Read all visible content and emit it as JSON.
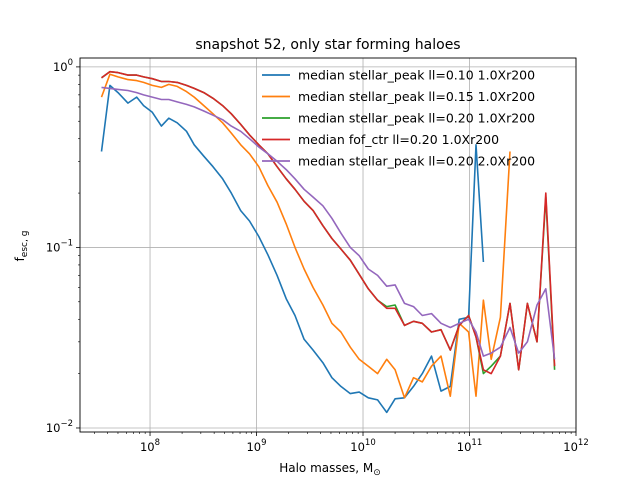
{
  "chart_data": {
    "type": "line",
    "title": "snapshot 52, only star forming haloes",
    "xlabel": "Halo masses, M",
    "xlabel_sub": "⊙",
    "ylabel": "f",
    "ylabel_sub": "esc, g",
    "xscale": "log",
    "yscale": "log",
    "xlim": [
      22000000.0,
      1000000000000.0
    ],
    "ylim": [
      0.0095,
      1.12
    ],
    "grid": true,
    "legend_position": "top-right",
    "x_ticks": [
      {
        "value": 100000000.0,
        "label": "10",
        "exp": "8"
      },
      {
        "value": 1000000000.0,
        "label": "10",
        "exp": "9"
      },
      {
        "value": 10000000000.0,
        "label": "10",
        "exp": "10"
      },
      {
        "value": 100000000000.0,
        "label": "10",
        "exp": "11"
      },
      {
        "value": 1000000000000.0,
        "label": "10",
        "exp": "12"
      }
    ],
    "y_ticks": [
      {
        "value": 0.01,
        "label": "10",
        "exp": "−2"
      },
      {
        "value": 0.1,
        "label": "10",
        "exp": "−1"
      },
      {
        "value": 1,
        "label": "10",
        "exp": "0"
      }
    ],
    "series": [
      {
        "name": "median stellar_peak ll=0.10 1.0Xr200",
        "color": "#1f77b4",
        "points": [
          [
            35000000.0,
            0.34
          ],
          [
            42000000.0,
            0.79
          ],
          [
            50000000.0,
            0.72
          ],
          [
            62000000.0,
            0.63
          ],
          [
            75000000.0,
            0.68
          ],
          [
            87000000.0,
            0.61
          ],
          [
            105000000.0,
            0.56
          ],
          [
            128000000.0,
            0.47
          ],
          [
            150000000.0,
            0.52
          ],
          [
            180000000.0,
            0.49
          ],
          [
            220000000.0,
            0.44
          ],
          [
            260000000.0,
            0.37
          ],
          [
            320000000.0,
            0.32
          ],
          [
            390000000.0,
            0.28
          ],
          [
            480000000.0,
            0.24
          ],
          [
            580000000.0,
            0.2
          ],
          [
            710000000.0,
            0.16
          ],
          [
            860000000.0,
            0.14
          ],
          [
            1050000000.0,
            0.115
          ],
          [
            1280000000.0,
            0.091
          ],
          [
            1560000000.0,
            0.07
          ],
          [
            1900000000.0,
            0.052
          ],
          [
            2300000000.0,
            0.042
          ],
          [
            2800000000.0,
            0.031
          ],
          [
            3400000000.0,
            0.027
          ],
          [
            4200000000.0,
            0.023
          ],
          [
            5100000000.0,
            0.019
          ],
          [
            6200000000.0,
            0.017
          ],
          [
            7600000000.0,
            0.0155
          ],
          [
            9200000000.0,
            0.0158
          ],
          [
            11200000000.0,
            0.0147
          ],
          [
            13700000000.0,
            0.0143
          ],
          [
            16700000000.0,
            0.0122
          ],
          [
            20000000000.0,
            0.0145
          ],
          [
            24500000000.0,
            0.0147
          ],
          [
            29800000000.0,
            0.017
          ],
          [
            36000000000.0,
            0.02
          ],
          [
            44000000000.0,
            0.025
          ],
          [
            54000000000.0,
            0.016
          ],
          [
            66000000000.0,
            0.017
          ],
          [
            80000000000.0,
            0.04
          ],
          [
            98000000000.0,
            0.041
          ],
          [
            115000000000.0,
            0.37
          ],
          [
            135000000000.0,
            0.083
          ]
        ]
      },
      {
        "name": "median stellar_peak ll=0.15 1.0Xr200",
        "color": "#ff7f0e",
        "points": [
          [
            35000000.0,
            0.68
          ],
          [
            42000000.0,
            0.91
          ],
          [
            50000000.0,
            0.88
          ],
          [
            62000000.0,
            0.85
          ],
          [
            75000000.0,
            0.84
          ],
          [
            87000000.0,
            0.82
          ],
          [
            105000000.0,
            0.79
          ],
          [
            128000000.0,
            0.77
          ],
          [
            150000000.0,
            0.8
          ],
          [
            180000000.0,
            0.78
          ],
          [
            220000000.0,
            0.73
          ],
          [
            260000000.0,
            0.68
          ],
          [
            320000000.0,
            0.61
          ],
          [
            390000000.0,
            0.55
          ],
          [
            480000000.0,
            0.49
          ],
          [
            580000000.0,
            0.43
          ],
          [
            710000000.0,
            0.37
          ],
          [
            860000000.0,
            0.33
          ],
          [
            1050000000.0,
            0.28
          ],
          [
            1280000000.0,
            0.22
          ],
          [
            1560000000.0,
            0.178
          ],
          [
            1900000000.0,
            0.135
          ],
          [
            2300000000.0,
            0.1
          ],
          [
            2800000000.0,
            0.076
          ],
          [
            3400000000.0,
            0.06
          ],
          [
            4200000000.0,
            0.048
          ],
          [
            5100000000.0,
            0.038
          ],
          [
            6200000000.0,
            0.034
          ],
          [
            7600000000.0,
            0.028
          ],
          [
            9200000000.0,
            0.024
          ],
          [
            11200000000.0,
            0.022
          ],
          [
            13700000000.0,
            0.02
          ],
          [
            16700000000.0,
            0.024
          ],
          [
            20000000000.0,
            0.021
          ],
          [
            24500000000.0,
            0.0147
          ],
          [
            29800000000.0,
            0.019
          ],
          [
            36000000000.0,
            0.018
          ],
          [
            44000000000.0,
            0.022
          ],
          [
            54000000000.0,
            0.025
          ],
          [
            66000000000.0,
            0.015
          ],
          [
            80000000000.0,
            0.038
          ],
          [
            98000000000.0,
            0.034
          ],
          [
            115000000000.0,
            0.015
          ],
          [
            135000000000.0,
            0.051
          ],
          [
            160000000000.0,
            0.024
          ],
          [
            195000000000.0,
            0.041
          ],
          [
            240000000000.0,
            0.34
          ]
        ]
      },
      {
        "name": "median stellar_peak ll=0.20 1.0Xr200",
        "color": "#2ca02c",
        "points": [
          [
            35000000.0,
            0.87
          ],
          [
            42000000.0,
            0.94
          ],
          [
            50000000.0,
            0.93
          ],
          [
            62000000.0,
            0.9
          ],
          [
            75000000.0,
            0.9
          ],
          [
            87000000.0,
            0.88
          ],
          [
            105000000.0,
            0.86
          ],
          [
            128000000.0,
            0.83
          ],
          [
            150000000.0,
            0.83
          ],
          [
            180000000.0,
            0.82
          ],
          [
            220000000.0,
            0.79
          ],
          [
            260000000.0,
            0.76
          ],
          [
            320000000.0,
            0.72
          ],
          [
            390000000.0,
            0.67
          ],
          [
            480000000.0,
            0.61
          ],
          [
            580000000.0,
            0.55
          ],
          [
            710000000.0,
            0.48
          ],
          [
            860000000.0,
            0.42
          ],
          [
            1050000000.0,
            0.37
          ],
          [
            1280000000.0,
            0.33
          ],
          [
            1560000000.0,
            0.28
          ],
          [
            1900000000.0,
            0.24
          ],
          [
            2300000000.0,
            0.21
          ],
          [
            2800000000.0,
            0.18
          ],
          [
            3400000000.0,
            0.16
          ],
          [
            4200000000.0,
            0.132
          ],
          [
            5100000000.0,
            0.112
          ],
          [
            6200000000.0,
            0.098
          ],
          [
            7600000000.0,
            0.085
          ],
          [
            9200000000.0,
            0.071
          ],
          [
            11200000000.0,
            0.059
          ],
          [
            13700000000.0,
            0.051
          ],
          [
            16700000000.0,
            0.047
          ],
          [
            20000000000.0,
            0.048
          ],
          [
            24500000000.0,
            0.037
          ],
          [
            29800000000.0,
            0.039
          ],
          [
            36000000000.0,
            0.038
          ],
          [
            44000000000.0,
            0.034
          ],
          [
            54000000000.0,
            0.035
          ],
          [
            66000000000.0,
            0.027
          ],
          [
            80000000000.0,
            0.037
          ],
          [
            98000000000.0,
            0.042
          ],
          [
            115000000000.0,
            0.032
          ],
          [
            135000000000.0,
            0.02
          ],
          [
            160000000000.0,
            0.022
          ],
          [
            195000000000.0,
            0.025
          ],
          [
            240000000000.0,
            0.049
          ],
          [
            290000000000.0,
            0.021
          ],
          [
            350000000000.0,
            0.049
          ],
          [
            430000000000.0,
            0.03
          ],
          [
            520000000000.0,
            0.19
          ],
          [
            630000000000.0,
            0.021
          ]
        ]
      },
      {
        "name": "median fof_ctr ll=0.20 1.0Xr200",
        "color": "#d62728",
        "points": [
          [
            35000000.0,
            0.87
          ],
          [
            42000000.0,
            0.94
          ],
          [
            50000000.0,
            0.93
          ],
          [
            62000000.0,
            0.9
          ],
          [
            75000000.0,
            0.9
          ],
          [
            87000000.0,
            0.88
          ],
          [
            105000000.0,
            0.86
          ],
          [
            128000000.0,
            0.83
          ],
          [
            150000000.0,
            0.83
          ],
          [
            180000000.0,
            0.82
          ],
          [
            220000000.0,
            0.79
          ],
          [
            260000000.0,
            0.76
          ],
          [
            320000000.0,
            0.72
          ],
          [
            390000000.0,
            0.67
          ],
          [
            480000000.0,
            0.61
          ],
          [
            580000000.0,
            0.55
          ],
          [
            710000000.0,
            0.48
          ],
          [
            860000000.0,
            0.42
          ],
          [
            1050000000.0,
            0.37
          ],
          [
            1280000000.0,
            0.33
          ],
          [
            1560000000.0,
            0.28
          ],
          [
            1900000000.0,
            0.24
          ],
          [
            2300000000.0,
            0.21
          ],
          [
            2800000000.0,
            0.18
          ],
          [
            3400000000.0,
            0.16
          ],
          [
            4200000000.0,
            0.132
          ],
          [
            5100000000.0,
            0.112
          ],
          [
            6200000000.0,
            0.098
          ],
          [
            7600000000.0,
            0.085
          ],
          [
            9200000000.0,
            0.071
          ],
          [
            11200000000.0,
            0.059
          ],
          [
            13700000000.0,
            0.051
          ],
          [
            16700000000.0,
            0.046
          ],
          [
            20000000000.0,
            0.046
          ],
          [
            24500000000.0,
            0.037
          ],
          [
            29800000000.0,
            0.039
          ],
          [
            36000000000.0,
            0.038
          ],
          [
            44000000000.0,
            0.034
          ],
          [
            54000000000.0,
            0.035
          ],
          [
            66000000000.0,
            0.027
          ],
          [
            80000000000.0,
            0.037
          ],
          [
            98000000000.0,
            0.042
          ],
          [
            115000000000.0,
            0.032
          ],
          [
            135000000000.0,
            0.021
          ],
          [
            160000000000.0,
            0.02
          ],
          [
            195000000000.0,
            0.025
          ],
          [
            240000000000.0,
            0.049
          ],
          [
            290000000000.0,
            0.021
          ],
          [
            350000000000.0,
            0.049
          ],
          [
            430000000000.0,
            0.03
          ],
          [
            520000000000.0,
            0.2
          ],
          [
            630000000000.0,
            0.022
          ]
        ]
      },
      {
        "name": "median stellar_peak ll=0.20 2.0Xr200",
        "color": "#9467bd",
        "points": [
          [
            35000000.0,
            0.77
          ],
          [
            42000000.0,
            0.76
          ],
          [
            50000000.0,
            0.75
          ],
          [
            62000000.0,
            0.74
          ],
          [
            75000000.0,
            0.72
          ],
          [
            87000000.0,
            0.7
          ],
          [
            105000000.0,
            0.68
          ],
          [
            128000000.0,
            0.66
          ],
          [
            150000000.0,
            0.66
          ],
          [
            180000000.0,
            0.64
          ],
          [
            220000000.0,
            0.62
          ],
          [
            260000000.0,
            0.6
          ],
          [
            320000000.0,
            0.57
          ],
          [
            390000000.0,
            0.54
          ],
          [
            480000000.0,
            0.51
          ],
          [
            580000000.0,
            0.47
          ],
          [
            710000000.0,
            0.44
          ],
          [
            860000000.0,
            0.4
          ],
          [
            1050000000.0,
            0.36
          ],
          [
            1280000000.0,
            0.33
          ],
          [
            1560000000.0,
            0.3
          ],
          [
            1900000000.0,
            0.27
          ],
          [
            2300000000.0,
            0.24
          ],
          [
            2800000000.0,
            0.21
          ],
          [
            3400000000.0,
            0.19
          ],
          [
            4200000000.0,
            0.17
          ],
          [
            5100000000.0,
            0.145
          ],
          [
            6200000000.0,
            0.12
          ],
          [
            7600000000.0,
            0.1
          ],
          [
            9200000000.0,
            0.09
          ],
          [
            11200000000.0,
            0.076
          ],
          [
            13700000000.0,
            0.07
          ],
          [
            16700000000.0,
            0.061
          ],
          [
            20000000000.0,
            0.062
          ],
          [
            24500000000.0,
            0.049
          ],
          [
            29800000000.0,
            0.047
          ],
          [
            36000000000.0,
            0.042
          ],
          [
            44000000000.0,
            0.043
          ],
          [
            54000000000.0,
            0.038
          ],
          [
            66000000000.0,
            0.036
          ],
          [
            80000000000.0,
            0.038
          ],
          [
            98000000000.0,
            0.04
          ],
          [
            115000000000.0,
            0.034
          ],
          [
            135000000000.0,
            0.025
          ],
          [
            160000000000.0,
            0.026
          ],
          [
            195000000000.0,
            0.028
          ],
          [
            240000000000.0,
            0.036
          ],
          [
            290000000000.0,
            0.026
          ],
          [
            350000000000.0,
            0.03
          ],
          [
            430000000000.0,
            0.048
          ],
          [
            520000000000.0,
            0.059
          ],
          [
            630000000000.0,
            0.024
          ]
        ]
      }
    ]
  }
}
